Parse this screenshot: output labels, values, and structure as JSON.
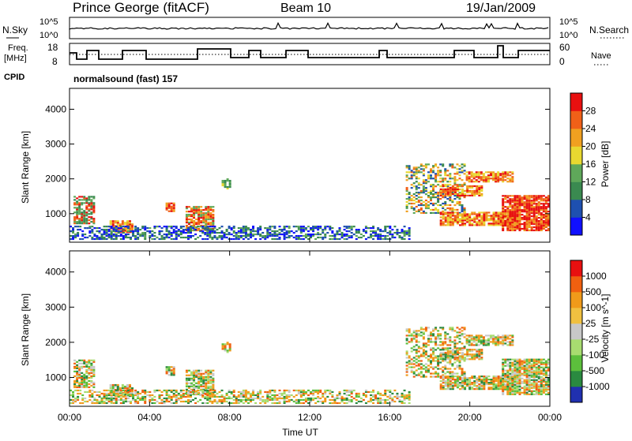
{
  "header": {
    "station": "Prince George (fitACF)",
    "beam": "Beam 10",
    "date": "19/Jan/2009"
  },
  "status_panels": {
    "nsky": {
      "left_label": "N.Sky",
      "left_ticks": [
        "10^5",
        "10^0"
      ],
      "right_label": "N.Search",
      "right_ticks": [
        "10^5",
        "10^0"
      ]
    },
    "freq": {
      "left_label_1": "Freq.",
      "left_label_2": "[MHz]",
      "left_ticks": [
        "18",
        "8"
      ],
      "right_label": "Nave",
      "right_ticks": [
        "60",
        "0"
      ]
    },
    "cpid": {
      "label": "CPID",
      "text": "normalsound (fast) 157"
    }
  },
  "chart_data": [
    {
      "type": "heatmap",
      "panel": "power",
      "ylabel": "Slant Range [km]",
      "y_ticks": [
        "1000",
        "2000",
        "3000",
        "4000"
      ],
      "colorbar_label": "Power [dB]",
      "colorbar_ticks": [
        "4",
        "8",
        "12",
        "16",
        "20",
        "24",
        "28"
      ],
      "colorbar_colors": [
        "#1010ff",
        "#1e50b0",
        "#3a8a50",
        "#5fa85a",
        "#e8d830",
        "#f0a020",
        "#f06018",
        "#e81010"
      ],
      "ylim": [
        180,
        4600
      ]
    },
    {
      "type": "heatmap",
      "panel": "velocity",
      "ylabel": "Slant Range [km]",
      "y_ticks": [
        "1000",
        "2000",
        "3000",
        "4000"
      ],
      "colorbar_label": "Velocity [m s^-1]",
      "colorbar_ticks": [
        "1000",
        "500",
        "100",
        "25",
        "-25",
        "-100",
        "-500",
        "-1000"
      ],
      "colorbar_colors": [
        "#2030b0",
        "#2a8a40",
        "#5cbf3c",
        "#a8dc70",
        "#c8c8c8",
        "#f0c040",
        "#f09a1a",
        "#f06010",
        "#e81010"
      ],
      "ylim": [
        180,
        4600
      ]
    }
  ],
  "x_axis": {
    "label": "Time UT",
    "ticks": [
      "00:00",
      "04:00",
      "08:00",
      "12:00",
      "16:00",
      "20:00",
      "00:00"
    ]
  }
}
